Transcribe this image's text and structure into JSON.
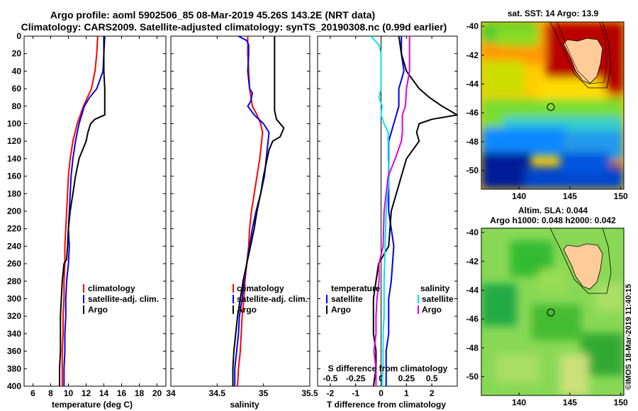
{
  "title": {
    "line1": "Argo profile: aoml 5902506_85 08-Mar-2019 45.26S 143.2E (NRT data)",
    "line2": "Climatology: CARS2009. Satellite-adjusted climatology: synTS_20190308.nc (0.99d earlier)"
  },
  "watermark": "©IMOS 18-Mar-2019 11:40:15",
  "colors": {
    "red": "#ff0000",
    "blue": "#0000ee",
    "black": "#000000",
    "cyan": "#00e5ee",
    "magenta": "#dd00dd"
  },
  "chart_data": [
    {
      "type": "line",
      "id": "temperature",
      "xlabel": "temperature (deg C)",
      "xlim": [
        5,
        21
      ],
      "ylim": [
        0,
        400
      ],
      "xticks": [
        6,
        8,
        10,
        12,
        14,
        16,
        18,
        20
      ],
      "yticks": [
        0,
        20,
        40,
        60,
        80,
        100,
        120,
        140,
        160,
        180,
        200,
        220,
        240,
        260,
        280,
        300,
        320,
        340,
        360,
        380,
        400
      ],
      "legend": [
        "climatology",
        "satellite-adj. clim.",
        "Argo"
      ],
      "series": [
        {
          "name": "climatology",
          "color": "red",
          "depth": [
            0,
            20,
            40,
            60,
            80,
            100,
            120,
            140,
            160,
            180,
            200,
            220,
            240,
            260,
            280,
            300,
            320,
            340,
            360,
            380,
            400
          ],
          "values": [
            13.3,
            13.2,
            13.0,
            12.6,
            11.7,
            11.0,
            10.5,
            10.2,
            10.0,
            9.9,
            9.8,
            9.7,
            9.6,
            9.6,
            9.5,
            9.5,
            9.4,
            9.4,
            9.3,
            9.3,
            9.3
          ]
        },
        {
          "name": "satellite-adj. clim.",
          "color": "blue",
          "depth": [
            0,
            20,
            40,
            60,
            70,
            80,
            90,
            100,
            120,
            140,
            160,
            180,
            200,
            220,
            240,
            260,
            280,
            300,
            320,
            340,
            360,
            380,
            400
          ],
          "values": [
            14.1,
            14.0,
            13.9,
            13.2,
            12.4,
            11.8,
            11.5,
            11.2,
            10.8,
            10.5,
            10.3,
            10.2,
            10.1,
            10.0,
            10.1,
            10.0,
            9.8,
            9.7,
            9.7,
            9.6,
            9.6,
            9.5,
            9.5
          ]
        },
        {
          "name": "Argo",
          "color": "black",
          "depth": [
            0,
            20,
            40,
            60,
            70,
            80,
            90,
            95,
            100,
            110,
            120,
            140,
            160,
            180,
            200,
            220,
            240,
            255,
            260,
            280,
            300,
            320,
            340,
            360,
            380,
            400
          ],
          "values": [
            14.0,
            14.0,
            14.0,
            14.1,
            14.1,
            14.1,
            14.1,
            13.0,
            12.5,
            12.2,
            12.0,
            11.2,
            10.8,
            10.5,
            10.2,
            10.0,
            9.9,
            9.8,
            9.5,
            9.3,
            9.2,
            9.1,
            9.1,
            9.1,
            9.0,
            9.0
          ]
        }
      ]
    },
    {
      "type": "line",
      "id": "salinity",
      "xlabel": "salinity",
      "xlim": [
        34,
        35.5
      ],
      "ylim": [
        0,
        400
      ],
      "xticks": [
        34,
        34.5,
        35,
        35.5
      ],
      "legend": [
        "climatology",
        "satellite-adj. clim.",
        "Argo"
      ],
      "series": [
        {
          "name": "climatology",
          "color": "red",
          "depth": [
            0,
            20,
            40,
            60,
            80,
            90,
            100,
            110,
            120,
            140,
            160,
            180,
            200,
            220,
            240,
            260,
            280,
            300,
            320,
            340,
            360,
            380,
            400
          ],
          "values": [
            34.83,
            34.83,
            34.84,
            34.85,
            34.88,
            34.93,
            34.97,
            34.99,
            34.98,
            34.96,
            34.93,
            34.9,
            34.87,
            34.85,
            34.84,
            34.82,
            34.8,
            34.79,
            34.77,
            34.76,
            34.75,
            34.73,
            34.72
          ]
        },
        {
          "name": "satellite-adj. clim.",
          "color": "blue",
          "depth": [
            0,
            5,
            10,
            20,
            40,
            60,
            65,
            75,
            80,
            90,
            100,
            110,
            120,
            140,
            160,
            180,
            200,
            220,
            240,
            260,
            280,
            300,
            320,
            340,
            360,
            380,
            400
          ],
          "values": [
            34.73,
            34.82,
            34.84,
            34.84,
            34.83,
            34.85,
            34.88,
            34.86,
            34.83,
            34.9,
            35.0,
            35.06,
            35.05,
            35.03,
            35.01,
            34.97,
            34.92,
            34.88,
            34.85,
            34.82,
            34.79,
            34.77,
            34.74,
            34.73,
            34.71,
            34.69,
            34.69
          ]
        },
        {
          "name": "Argo",
          "color": "black",
          "depth": [
            0,
            20,
            40,
            60,
            80,
            85,
            95,
            100,
            105,
            110,
            115,
            120,
            130,
            140,
            160,
            180,
            200,
            220,
            240,
            260,
            280,
            300,
            320,
            340,
            360,
            380,
            400
          ],
          "values": [
            35.12,
            35.12,
            35.12,
            35.12,
            35.12,
            35.12,
            35.14,
            35.18,
            35.22,
            35.2,
            35.18,
            35.1,
            35.06,
            35.04,
            35.0,
            34.97,
            34.93,
            34.9,
            34.86,
            34.82,
            34.78,
            34.75,
            34.72,
            34.7,
            34.68,
            34.67,
            34.67
          ]
        }
      ]
    },
    {
      "type": "line",
      "id": "differences",
      "xlabel": "T difference from climatology",
      "xlabel_top": "S difference from climatology",
      "xlim": [
        -2.5,
        3
      ],
      "ylim": [
        0,
        400
      ],
      "xticks": [
        -2,
        -1,
        0,
        1,
        2
      ],
      "s_xlim": [
        -0.625,
        0.75
      ],
      "s_xticks": [
        -0.5,
        -0.25,
        0,
        0.25,
        0.5
      ],
      "s_tick_labels": [
        "-0.5",
        "-0.25",
        "0",
        "0.25",
        "0.5"
      ],
      "legend_temperature": {
        "title": "temperature",
        "items": [
          "satellite",
          "Argo"
        ]
      },
      "legend_salinity": {
        "title": "salinity",
        "items": [
          "satellite",
          "Argo"
        ]
      },
      "series": [
        {
          "name": "T satellite",
          "color": "blue",
          "depth": [
            0,
            20,
            40,
            60,
            80,
            100,
            120,
            140,
            160,
            200,
            240,
            280,
            300,
            320,
            340,
            360,
            380,
            400
          ],
          "values": [
            0.8,
            0.8,
            0.9,
            0.7,
            0.7,
            0.5,
            0.3,
            0.3,
            0.3,
            0.3,
            0.5,
            0.4,
            0.3,
            0.3,
            0.3,
            0.2,
            0.2,
            0.2
          ]
        },
        {
          "name": "T Argo",
          "color": "black",
          "depth": [
            0,
            20,
            40,
            60,
            70,
            80,
            90,
            95,
            100,
            110,
            120,
            140,
            160,
            200,
            240,
            260,
            280,
            300,
            320,
            340,
            360,
            380,
            400
          ],
          "values": [
            0.7,
            0.8,
            1.0,
            1.5,
            1.9,
            2.4,
            3.0,
            2.0,
            1.5,
            1.4,
            1.5,
            1.0,
            0.8,
            0.4,
            0.3,
            -0.1,
            -0.2,
            -0.3,
            -0.3,
            -0.3,
            -0.2,
            -0.2,
            -0.3
          ]
        },
        {
          "name": "S satellite",
          "color": "cyan",
          "depth": [
            0,
            10,
            20,
            40,
            60,
            70,
            80,
            90,
            100,
            110,
            120,
            140,
            160,
            200,
            240,
            280,
            300,
            320,
            340,
            360,
            380,
            400
          ],
          "values": [
            -0.1,
            -0.02,
            0.0,
            0.0,
            0.0,
            -0.02,
            0.01,
            0.0,
            0.03,
            0.07,
            0.07,
            0.07,
            0.08,
            0.05,
            0.04,
            0.03,
            0.03,
            0.03,
            0.02,
            0.02,
            0.02,
            0.01
          ]
        },
        {
          "name": "S Argo",
          "color": "magenta",
          "depth": [
            0,
            20,
            40,
            60,
            80,
            90,
            100,
            110,
            120,
            140,
            160,
            200,
            240,
            260,
            280,
            300,
            320,
            340,
            360,
            380,
            400
          ],
          "values": [
            0.28,
            0.28,
            0.28,
            0.25,
            0.24,
            0.21,
            0.21,
            0.21,
            0.2,
            0.14,
            0.07,
            0.03,
            0.02,
            -0.02,
            -0.02,
            -0.04,
            -0.05,
            -0.05,
            -0.07,
            -0.05,
            -0.05
          ]
        }
      ]
    }
  ],
  "maps": [
    {
      "id": "sst",
      "title": "sat. SST: 14 Argo: 13.9",
      "yticks": [
        "-40",
        "-42",
        "-44",
        "-46",
        "-48",
        "-50"
      ],
      "xticks": [
        "140",
        "145",
        "150"
      ]
    },
    {
      "id": "sla",
      "title": "Altim. SLA: 0.044",
      "title2": "Argo h1000: 0.048 h2000: 0.042",
      "yticks": [
        "-40",
        "-42",
        "-44",
        "-46",
        "-48",
        "-50"
      ],
      "xticks": [
        "140",
        "145",
        "150"
      ]
    }
  ]
}
